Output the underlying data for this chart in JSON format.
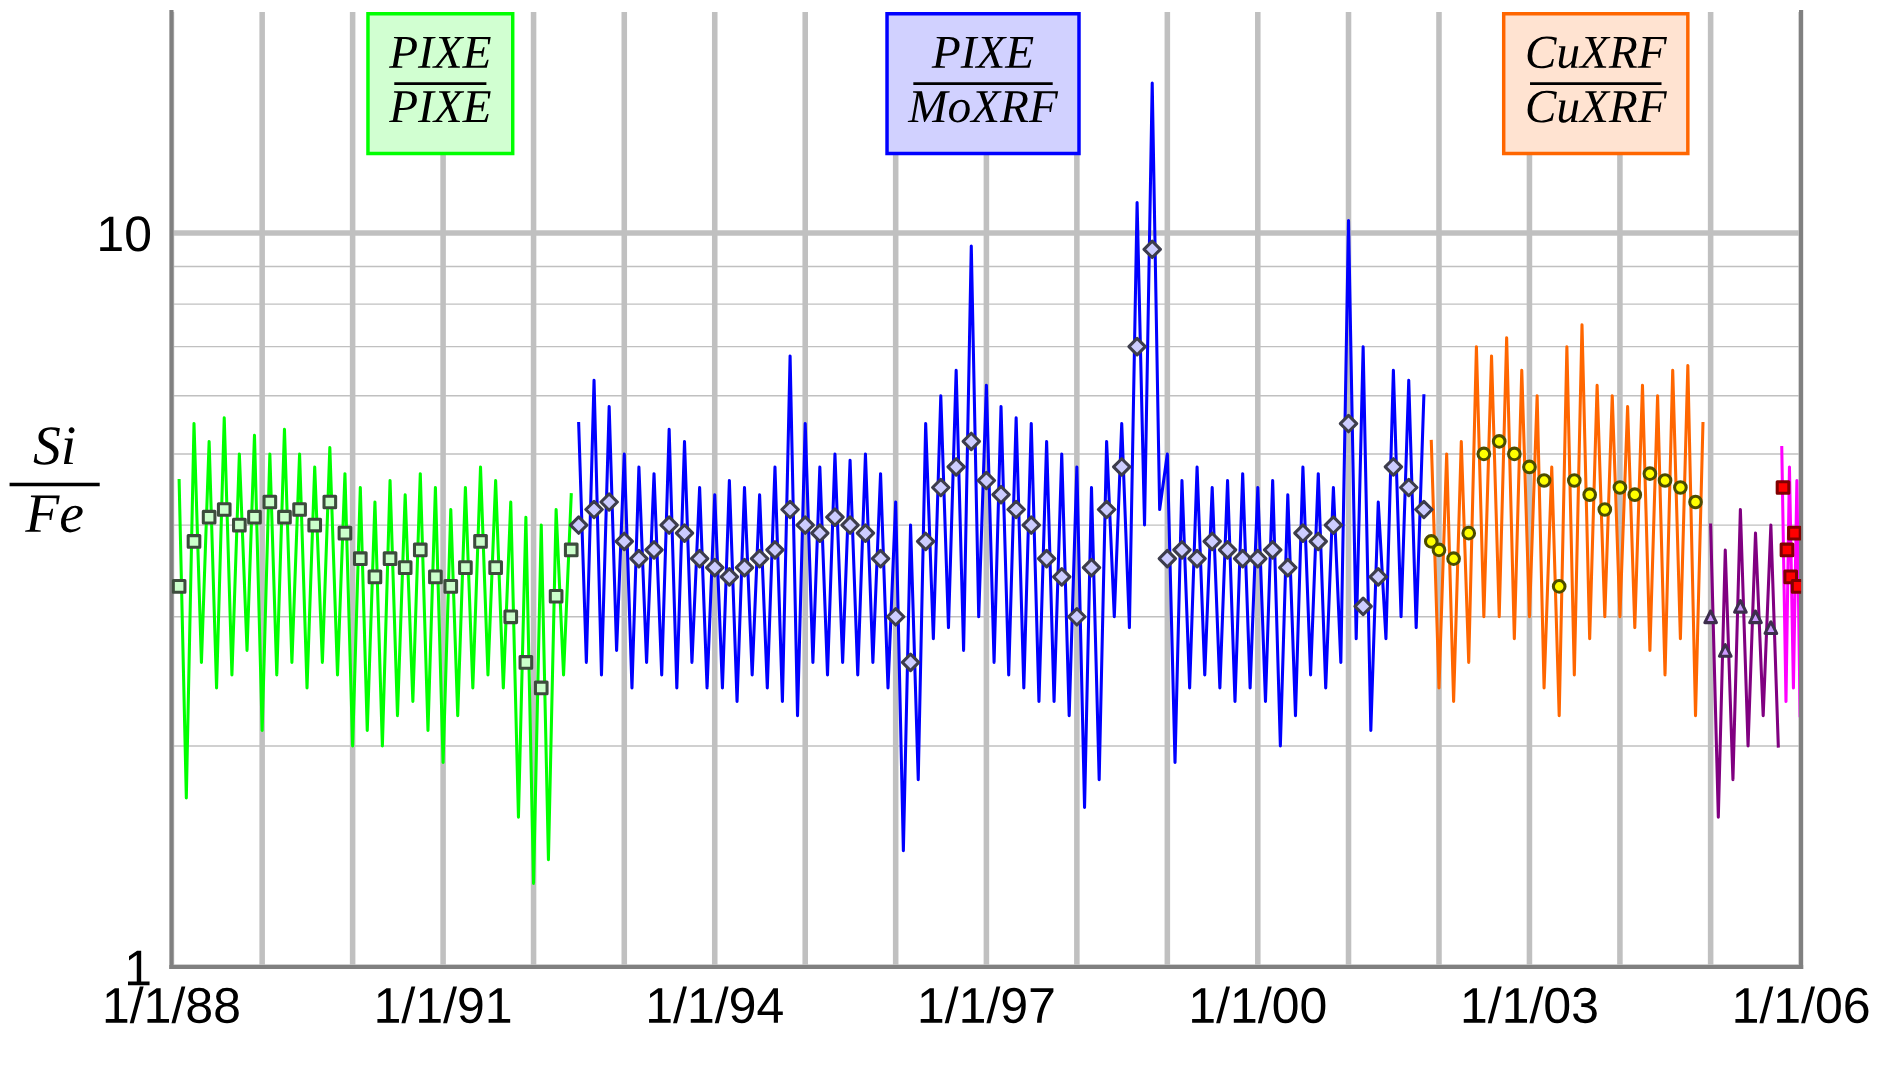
{
  "chart_data": {
    "type": "line",
    "ylabel": "Si\nFe",
    "log": "y",
    "grid": true,
    "xlim": [
      "1988-01-01",
      "2006-01-01"
    ],
    "xticks": [
      {
        "value": "1988-01-01",
        "label": "1/1/88"
      },
      {
        "value": "1989-01-01",
        "label": null
      },
      {
        "value": "1990-01-01",
        "label": null
      },
      {
        "value": "1991-01-01",
        "label": "1/1/91"
      },
      {
        "value": "1992-01-01",
        "label": null
      },
      {
        "value": "1993-01-01",
        "label": null
      },
      {
        "value": "1994-01-01",
        "label": "1/1/94"
      },
      {
        "value": "1995-01-01",
        "label": null
      },
      {
        "value": "1996-01-01",
        "label": null
      },
      {
        "value": "1997-01-01",
        "label": "1/1/97"
      },
      {
        "value": "1998-01-01",
        "label": null
      },
      {
        "value": "1999-01-01",
        "label": null
      },
      {
        "value": "2000-01-01",
        "label": "1/1/00"
      },
      {
        "value": "2001-01-01",
        "label": null
      },
      {
        "value": "2002-01-01",
        "label": null
      },
      {
        "value": "2003-01-01",
        "label": "1/1/03"
      },
      {
        "value": "2004-01-01",
        "label": null
      },
      {
        "value": "2005-01-01",
        "label": null
      },
      {
        "value": "2006-01-01",
        "label": "1/1/06"
      }
    ],
    "ylim": [
      1,
      20
    ],
    "yticks": [
      1,
      {
        "value": 2,
        "label": null
      },
      {
        "value": 3,
        "label": null
      },
      {
        "value": 4,
        "label": null
      },
      {
        "value": 5,
        "label": null
      },
      {
        "value": 6,
        "label": null
      },
      {
        "value": 7,
        "label": null
      },
      {
        "value": 8,
        "label": null
      },
      {
        "value": 9,
        "label": null
      },
      10
    ],
    "annotations": [
      "PIXE\nPIXE",
      "PIXE\nMoXRF",
      "CuXRF\nCuXRF"
    ],
    "series": [
      {
        "color": "#00ff00",
        "x": [
          "1988-02",
          "1988-03",
          "1988-04",
          "1988-05",
          "1988-06",
          "1988-07",
          "1988-08",
          "1988-09",
          "1988-10",
          "1988-11",
          "1988-12",
          "1989-01",
          "1989-02",
          "1989-03",
          "1989-04",
          "1989-05",
          "1989-06",
          "1989-07",
          "1989-08",
          "1989-09",
          "1989-10",
          "1989-11",
          "1989-12",
          "1990-01",
          "1990-02",
          "1990-03",
          "1990-04",
          "1990-05",
          "1990-06",
          "1990-07",
          "1990-08",
          "1990-09",
          "1990-10",
          "1990-11",
          "1990-12",
          "1991-01",
          "1991-02",
          "1991-03",
          "1991-04",
          "1991-05",
          "1991-06",
          "1991-07",
          "1991-08",
          "1991-09",
          "1991-10",
          "1991-11",
          "1991-12",
          "1992-01",
          "1992-02",
          "1992-03",
          "1992-04",
          "1992-05",
          "1992-06"
        ],
        "values": [
          4.6,
          1.7,
          5.5,
          2.6,
          5.2,
          2.4,
          5.6,
          2.5,
          5.0,
          2.7,
          5.3,
          2.1,
          5.0,
          2.5,
          5.4,
          2.6,
          5.0,
          2.4,
          4.8,
          2.6,
          5.1,
          2.5,
          4.7,
          2.0,
          4.5,
          2.1,
          4.3,
          2.0,
          4.6,
          2.2,
          4.4,
          2.3,
          4.7,
          2.1,
          4.5,
          1.9,
          4.2,
          2.2,
          4.5,
          2.4,
          4.8,
          2.5,
          4.6,
          2.4,
          4.3,
          1.6,
          4.1,
          1.3,
          4.0,
          1.4,
          4.2,
          2.5,
          4.4
        ]
      },
      {
        "color": "#0000ff",
        "x": [
          "1992-07",
          "1992-08",
          "1992-09",
          "1992-10",
          "1992-11",
          "1992-12",
          "1993-01",
          "1993-02",
          "1993-03",
          "1993-04",
          "1993-05",
          "1993-06",
          "1993-07",
          "1993-08",
          "1993-09",
          "1993-10",
          "1993-11",
          "1993-12",
          "1994-01",
          "1994-02",
          "1994-03",
          "1994-04",
          "1994-05",
          "1994-06",
          "1994-07",
          "1994-08",
          "1994-09",
          "1994-10",
          "1994-11",
          "1994-12",
          "1995-01",
          "1995-02",
          "1995-03",
          "1995-04",
          "1995-05",
          "1995-06",
          "1995-07",
          "1995-08",
          "1995-09",
          "1995-10",
          "1995-11",
          "1995-12",
          "1996-01",
          "1996-02",
          "1996-03",
          "1996-04",
          "1996-05",
          "1996-06",
          "1996-07",
          "1996-08",
          "1996-09",
          "1996-10",
          "1996-11",
          "1996-12",
          "1997-01",
          "1997-02",
          "1997-03",
          "1997-04",
          "1997-05",
          "1997-06",
          "1997-07",
          "1997-08",
          "1997-09",
          "1997-10",
          "1997-11",
          "1997-12",
          "1998-01",
          "1998-02",
          "1998-03",
          "1998-04",
          "1998-05",
          "1998-06",
          "1998-07",
          "1998-08",
          "1998-09",
          "1998-10",
          "1998-11",
          "1998-12",
          "1999-01",
          "1999-02",
          "1999-03",
          "1999-04",
          "1999-05",
          "1999-06",
          "1999-07",
          "1999-08",
          "1999-09",
          "1999-10",
          "1999-11",
          "1999-12",
          "2000-01",
          "2000-02",
          "2000-03",
          "2000-04",
          "2000-05",
          "2000-06",
          "2000-07",
          "2000-08",
          "2000-09",
          "2000-10",
          "2000-11",
          "2000-12",
          "2001-01",
          "2001-02",
          "2001-03",
          "2001-04",
          "2001-05",
          "2001-06",
          "2001-07",
          "2001-08",
          "2001-09",
          "2001-10",
          "2001-11"
        ],
        "values": [
          5.5,
          2.6,
          6.3,
          2.5,
          5.8,
          2.7,
          5.0,
          2.4,
          4.8,
          2.6,
          4.7,
          2.5,
          5.4,
          2.4,
          5.2,
          2.6,
          4.5,
          2.4,
          4.4,
          2.4,
          4.6,
          2.3,
          4.5,
          2.5,
          4.4,
          2.4,
          4.8,
          2.3,
          6.8,
          2.2,
          5.5,
          2.6,
          4.8,
          2.5,
          5.0,
          2.6,
          4.9,
          2.5,
          5.0,
          2.6,
          4.7,
          2.4,
          4.3,
          1.44,
          4.0,
          1.8,
          5.5,
          2.8,
          6.0,
          2.9,
          6.5,
          2.7,
          9.6,
          3.0,
          6.2,
          2.6,
          5.8,
          2.5,
          5.6,
          2.4,
          5.5,
          2.3,
          5.2,
          2.3,
          5.0,
          2.2,
          4.8,
          1.65,
          4.5,
          1.8,
          5.2,
          3.0,
          5.5,
          2.9,
          11.0,
          4.0,
          16.0,
          4.2,
          5.0,
          1.9,
          4.6,
          2.4,
          4.8,
          2.5,
          4.5,
          2.4,
          4.6,
          2.3,
          4.7,
          2.4,
          4.5,
          2.3,
          4.6,
          2.0,
          4.4,
          2.2,
          4.8,
          2.5,
          4.7,
          2.4,
          4.5,
          2.6,
          10.4,
          2.8,
          7.0,
          2.1,
          4.3,
          2.8,
          6.5,
          3.0,
          6.3,
          2.9,
          6.0
        ]
      },
      {
        "color": "#ff6600",
        "x": [
          "2001-12",
          "2002-01",
          "2002-02",
          "2002-03",
          "2002-04",
          "2002-05",
          "2002-06",
          "2002-07",
          "2002-08",
          "2002-09",
          "2002-10",
          "2002-11",
          "2002-12",
          "2003-01",
          "2003-02",
          "2003-03",
          "2003-04",
          "2003-05",
          "2003-06",
          "2003-07",
          "2003-08",
          "2003-09",
          "2003-10",
          "2003-11",
          "2003-12",
          "2004-01",
          "2004-02",
          "2004-03",
          "2004-04",
          "2004-05",
          "2004-06",
          "2004-07",
          "2004-08",
          "2004-09",
          "2004-10",
          "2004-11",
          "2004-12"
        ],
        "values": [
          5.2,
          2.4,
          5.0,
          2.3,
          5.2,
          2.6,
          7.0,
          3.0,
          6.8,
          3.0,
          7.2,
          2.8,
          6.5,
          3.0,
          6.0,
          2.4,
          4.8,
          2.2,
          7.0,
          2.5,
          7.5,
          2.8,
          6.2,
          3.0,
          6.0,
          3.0,
          5.8,
          2.9,
          6.2,
          2.7,
          6.0,
          2.5,
          6.5,
          2.8,
          6.6,
          2.2,
          5.5
        ]
      },
      {
        "color": "#800080",
        "x": [
          "2005-01",
          "2005-02",
          "2005-03",
          "2005-04",
          "2005-05",
          "2005-06",
          "2005-07",
          "2005-08",
          "2005-09",
          "2005-10"
        ],
        "values": [
          4.0,
          1.6,
          3.7,
          1.8,
          4.2,
          2.0,
          3.9,
          2.2,
          4.0,
          2.0
        ]
      },
      {
        "color": "#ff00ff",
        "x": [
          "2005-10-15",
          "2005-11-01",
          "2005-11-15",
          "2005-12-01",
          "2005-12-15",
          "2005-12-28"
        ],
        "values": [
          5.1,
          2.3,
          4.8,
          2.4,
          4.6,
          2.2
        ]
      },
      {
        "type": "scatter",
        "marker": "square",
        "color": "#ccffcc",
        "x": [
          "1988-02",
          "1988-04",
          "1988-06",
          "1988-08",
          "1988-10",
          "1988-12",
          "1989-02",
          "1989-04",
          "1989-06",
          "1989-08",
          "1989-10",
          "1989-12",
          "1990-02",
          "1990-04",
          "1990-06",
          "1990-08",
          "1990-10",
          "1990-12",
          "1991-02",
          "1991-04",
          "1991-06",
          "1991-08",
          "1991-10",
          "1991-12",
          "1992-02",
          "1992-04",
          "1992-06"
        ],
        "values": [
          3.3,
          3.8,
          4.1,
          4.2,
          4.0,
          4.1,
          4.3,
          4.1,
          4.2,
          4.0,
          4.3,
          3.9,
          3.6,
          3.4,
          3.6,
          3.5,
          3.7,
          3.4,
          3.3,
          3.5,
          3.8,
          3.5,
          3.0,
          2.6,
          2.4,
          3.2,
          3.7
        ]
      },
      {
        "type": "scatter",
        "marker": "diamond",
        "color": "#ccccff",
        "x": [
          "1992-07",
          "1992-09",
          "1992-11",
          "1993-01",
          "1993-03",
          "1993-05",
          "1993-07",
          "1993-09",
          "1993-11",
          "1994-01",
          "1994-03",
          "1994-05",
          "1994-07",
          "1994-09",
          "1994-11",
          "1995-01",
          "1995-03",
          "1995-05",
          "1995-07",
          "1995-09",
          "1995-11",
          "1996-01",
          "1996-03",
          "1996-05",
          "1996-07",
          "1996-09",
          "1996-11",
          "1997-01",
          "1997-03",
          "1997-05",
          "1997-07",
          "1997-09",
          "1997-11",
          "1998-01",
          "1998-03",
          "1998-05",
          "1998-07",
          "1998-09",
          "1998-11",
          "1999-01",
          "1999-03",
          "1999-05",
          "1999-07",
          "1999-09",
          "1999-11",
          "2000-01",
          "2000-03",
          "2000-05",
          "2000-07",
          "2000-09",
          "2000-11",
          "2001-01",
          "2001-03",
          "2001-05",
          "2001-07",
          "2001-09",
          "2001-11"
        ],
        "values": [
          4.0,
          4.2,
          4.3,
          3.8,
          3.6,
          3.7,
          4.0,
          3.9,
          3.6,
          3.5,
          3.4,
          3.5,
          3.6,
          3.7,
          4.2,
          4.0,
          3.9,
          4.1,
          4.0,
          3.9,
          3.6,
          3.0,
          2.6,
          3.8,
          4.5,
          4.8,
          5.2,
          4.6,
          4.4,
          4.2,
          4.0,
          3.6,
          3.4,
          3.0,
          3.5,
          4.2,
          4.8,
          7.0,
          9.5,
          3.6,
          3.7,
          3.6,
          3.8,
          3.7,
          3.6,
          3.6,
          3.7,
          3.5,
          3.9,
          3.8,
          4.0,
          5.5,
          3.1,
          3.4,
          4.8,
          4.5,
          4.2
        ]
      },
      {
        "type": "scatter",
        "marker": "circle",
        "color": "#ffff00",
        "x": [
          "2001-12",
          "2002-01",
          "2002-03",
          "2002-05",
          "2002-07",
          "2002-09",
          "2002-11",
          "2003-01",
          "2003-03",
          "2003-05",
          "2003-07",
          "2003-09",
          "2003-11",
          "2004-01",
          "2004-03",
          "2004-05",
          "2004-07",
          "2004-09",
          "2004-11"
        ],
        "values": [
          3.8,
          3.7,
          3.6,
          3.9,
          5.0,
          5.2,
          5.0,
          4.8,
          4.6,
          3.3,
          4.6,
          4.4,
          4.2,
          4.5,
          4.4,
          4.7,
          4.6,
          4.5,
          4.3
        ]
      },
      {
        "type": "scatter",
        "marker": "triangle",
        "color": "#cc99ff",
        "x": [
          "2005-01",
          "2005-03",
          "2005-05",
          "2005-07",
          "2005-09"
        ],
        "values": [
          3.0,
          2.7,
          3.1,
          3.0,
          2.9
        ]
      },
      {
        "type": "scatter",
        "marker": "square",
        "color": "#ff0000",
        "x": [
          "2005-10-20",
          "2005-11-05",
          "2005-11-20",
          "2005-12-05",
          "2005-12-20"
        ],
        "values": [
          4.5,
          3.7,
          3.4,
          3.9,
          3.3
        ]
      }
    ]
  }
}
